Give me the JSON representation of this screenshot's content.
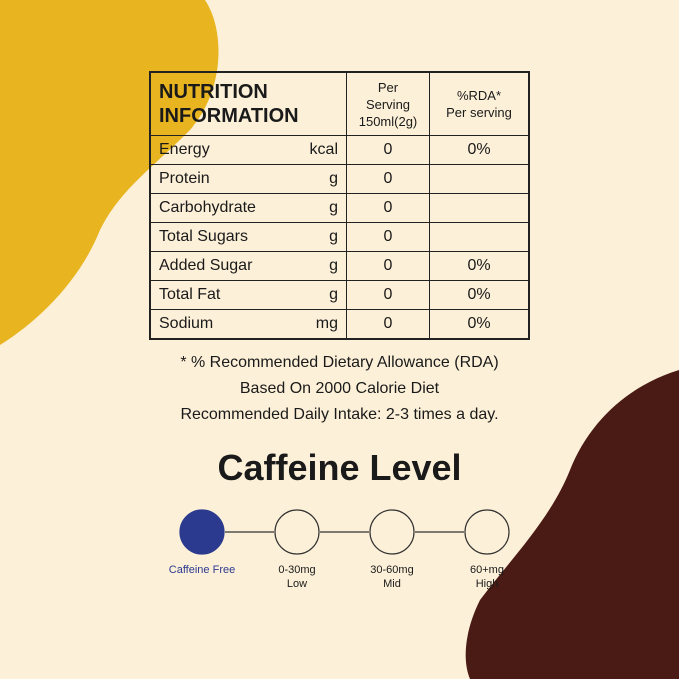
{
  "colors": {
    "background": "#fcf0d8",
    "yellow": "#e8b520",
    "brown": "#4a1a14",
    "active": "#2b3a8f"
  },
  "table": {
    "title_line1": "NUTRITION",
    "title_line2": "INFORMATION",
    "col1_line1": "Per Serving",
    "col1_line2": "150ml(2g)",
    "col2_line1": "%RDA*",
    "col2_line2": "Per serving",
    "rows": [
      {
        "name": "Energy",
        "unit": "kcal",
        "value": "0",
        "rda": "0%"
      },
      {
        "name": "Protein",
        "unit": "g",
        "value": "0",
        "rda": ""
      },
      {
        "name": "Carbohydrate",
        "unit": "g",
        "value": "0",
        "rda": ""
      },
      {
        "name": "Total Sugars",
        "unit": "g",
        "value": "0",
        "rda": ""
      },
      {
        "name": "Added Sugar",
        "unit": "g",
        "value": "0",
        "rda": "0%"
      },
      {
        "name": "Total Fat",
        "unit": "g",
        "value": "0",
        "rda": "0%"
      },
      {
        "name": "Sodium",
        "unit": "mg",
        "value": "0",
        "rda": "0%"
      }
    ]
  },
  "notes": [
    "* % Recommended Dietary Allowance (RDA)",
    "Based On 2000 Calorie Diet",
    "Recommended Daily Intake: 2-3 times a day."
  ],
  "caffeine": {
    "title": "Caffeine Level",
    "selected": 0,
    "levels": [
      {
        "line1": "Caffeine Free",
        "line2": ""
      },
      {
        "line1": "0-30mg",
        "line2": "Low"
      },
      {
        "line1": "30-60mg",
        "line2": "Mid"
      },
      {
        "line1": "60+mg",
        "line2": "High"
      }
    ]
  }
}
